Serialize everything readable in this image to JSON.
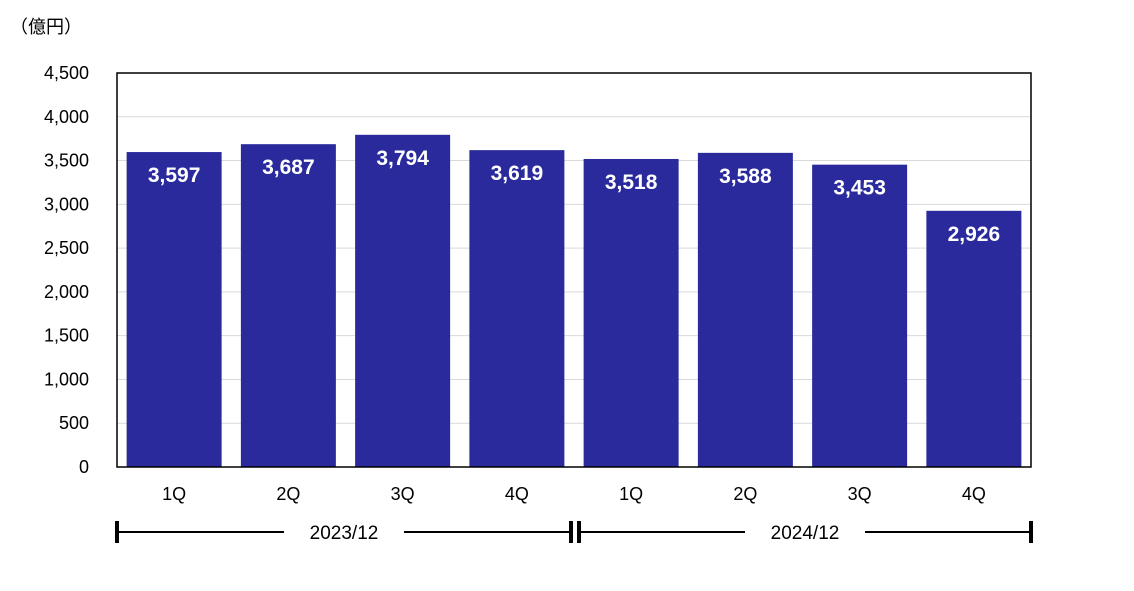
{
  "chart_data": {
    "type": "bar",
    "unit_label": "（億円）",
    "categories": [
      "1Q",
      "2Q",
      "3Q",
      "4Q",
      "1Q",
      "2Q",
      "3Q",
      "4Q"
    ],
    "values": [
      3597,
      3687,
      3794,
      3619,
      3518,
      3588,
      3453,
      2926
    ],
    "value_labels": [
      "3,597",
      "3,687",
      "3,794",
      "3,619",
      "3,518",
      "3,588",
      "3,453",
      "2,926"
    ],
    "yticks": [
      "0",
      "500",
      "1,000",
      "1,500",
      "2,000",
      "2,500",
      "3,000",
      "3,500",
      "4,000",
      "4,500"
    ],
    "ylim": [
      0,
      4500
    ],
    "groups": [
      {
        "label": "2023/12",
        "start": 0,
        "end": 3
      },
      {
        "label": "2024/12",
        "start": 4,
        "end": 7
      }
    ],
    "bar_color": "#2a2a9c",
    "grid": true,
    "title": "",
    "xlabel": "",
    "ylabel": ""
  }
}
